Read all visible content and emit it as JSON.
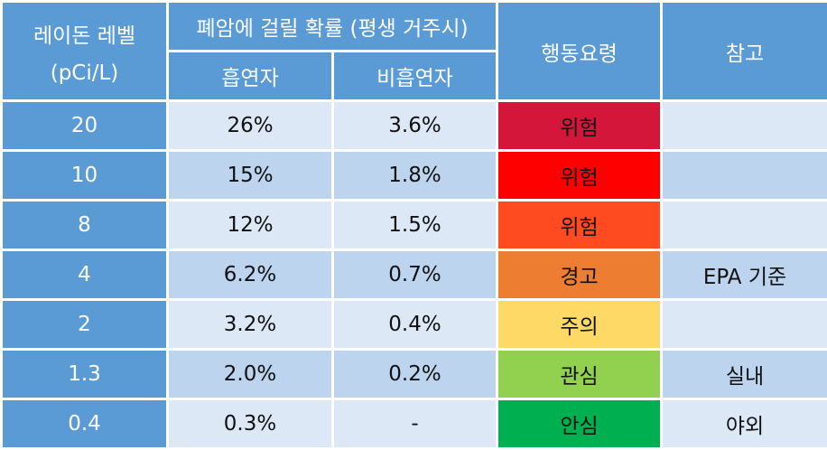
{
  "header": {
    "level_col": "레이돈 레벨",
    "level_unit": "(pCi/L)",
    "prob_group": "폐암에 걸릴 확률 (평생 거주시)",
    "smoker": "흡연자",
    "non_smoker": "비흡연자",
    "action": "행동요령",
    "note": "참고"
  },
  "rows": [
    {
      "level": "20",
      "smoker": "26%",
      "non_smoker": "3.6%",
      "action": "위험",
      "action_color": "#d4163b",
      "note": ""
    },
    {
      "level": "10",
      "smoker": "15%",
      "non_smoker": "1.8%",
      "action": "위험",
      "action_color": "#ff0000",
      "note": ""
    },
    {
      "level": "8",
      "smoker": "12%",
      "non_smoker": "1.5%",
      "action": "위험",
      "action_color": "#ff4b1f",
      "note": ""
    },
    {
      "level": "4",
      "smoker": "6.2%",
      "non_smoker": "0.7%",
      "action": "경고",
      "action_color": "#ed7d31",
      "note": "EPA 기준"
    },
    {
      "level": "2",
      "smoker": "3.2%",
      "non_smoker": "0.4%",
      "action": "주의",
      "action_color": "#ffd966",
      "note": ""
    },
    {
      "level": "1.3",
      "smoker": "2.0%",
      "non_smoker": "0.2%",
      "action": "관심",
      "action_color": "#92d050",
      "note": "실내"
    },
    {
      "level": "0.4",
      "smoker": "0.3%",
      "non_smoker": "-",
      "action": "안심",
      "action_color": "#00b050",
      "note": "야외"
    }
  ],
  "colors": {
    "header_bg": "#5b9bd5",
    "row_light": "#dde8f6",
    "row_dark": "#bdd4ee"
  }
}
